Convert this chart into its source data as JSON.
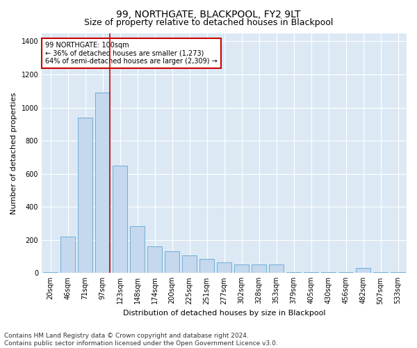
{
  "title": "99, NORTHGATE, BLACKPOOL, FY2 9LT",
  "subtitle": "Size of property relative to detached houses in Blackpool",
  "xlabel": "Distribution of detached houses by size in Blackpool",
  "ylabel": "Number of detached properties",
  "categories": [
    "20sqm",
    "46sqm",
    "71sqm",
    "97sqm",
    "123sqm",
    "148sqm",
    "174sqm",
    "200sqm",
    "225sqm",
    "251sqm",
    "277sqm",
    "302sqm",
    "328sqm",
    "353sqm",
    "379sqm",
    "405sqm",
    "430sqm",
    "456sqm",
    "482sqm",
    "507sqm",
    "533sqm"
  ],
  "values": [
    5,
    220,
    940,
    1090,
    650,
    285,
    160,
    130,
    105,
    85,
    65,
    50,
    50,
    50,
    5,
    5,
    5,
    5,
    30,
    5,
    5
  ],
  "bar_color": "#c5d8ee",
  "bar_edge_color": "#6baed6",
  "vline_x_index": 3,
  "vline_color": "#cc0000",
  "annotation_text": "99 NORTHGATE: 100sqm\n← 36% of detached houses are smaller (1,273)\n64% of semi-detached houses are larger (2,309) →",
  "annotation_box_facecolor": "#ffffff",
  "annotation_box_edge": "#cc0000",
  "ylim": [
    0,
    1450
  ],
  "yticks": [
    0,
    200,
    400,
    600,
    800,
    1000,
    1200,
    1400
  ],
  "footer_text": "Contains HM Land Registry data © Crown copyright and database right 2024.\nContains public sector information licensed under the Open Government Licence v3.0.",
  "fig_bg_color": "#ffffff",
  "plot_bg_color": "#dce9f5",
  "grid_color": "#ffffff",
  "title_fontsize": 10,
  "subtitle_fontsize": 9,
  "axis_label_fontsize": 8,
  "tick_fontsize": 7,
  "annotation_fontsize": 7,
  "footer_fontsize": 6.5
}
